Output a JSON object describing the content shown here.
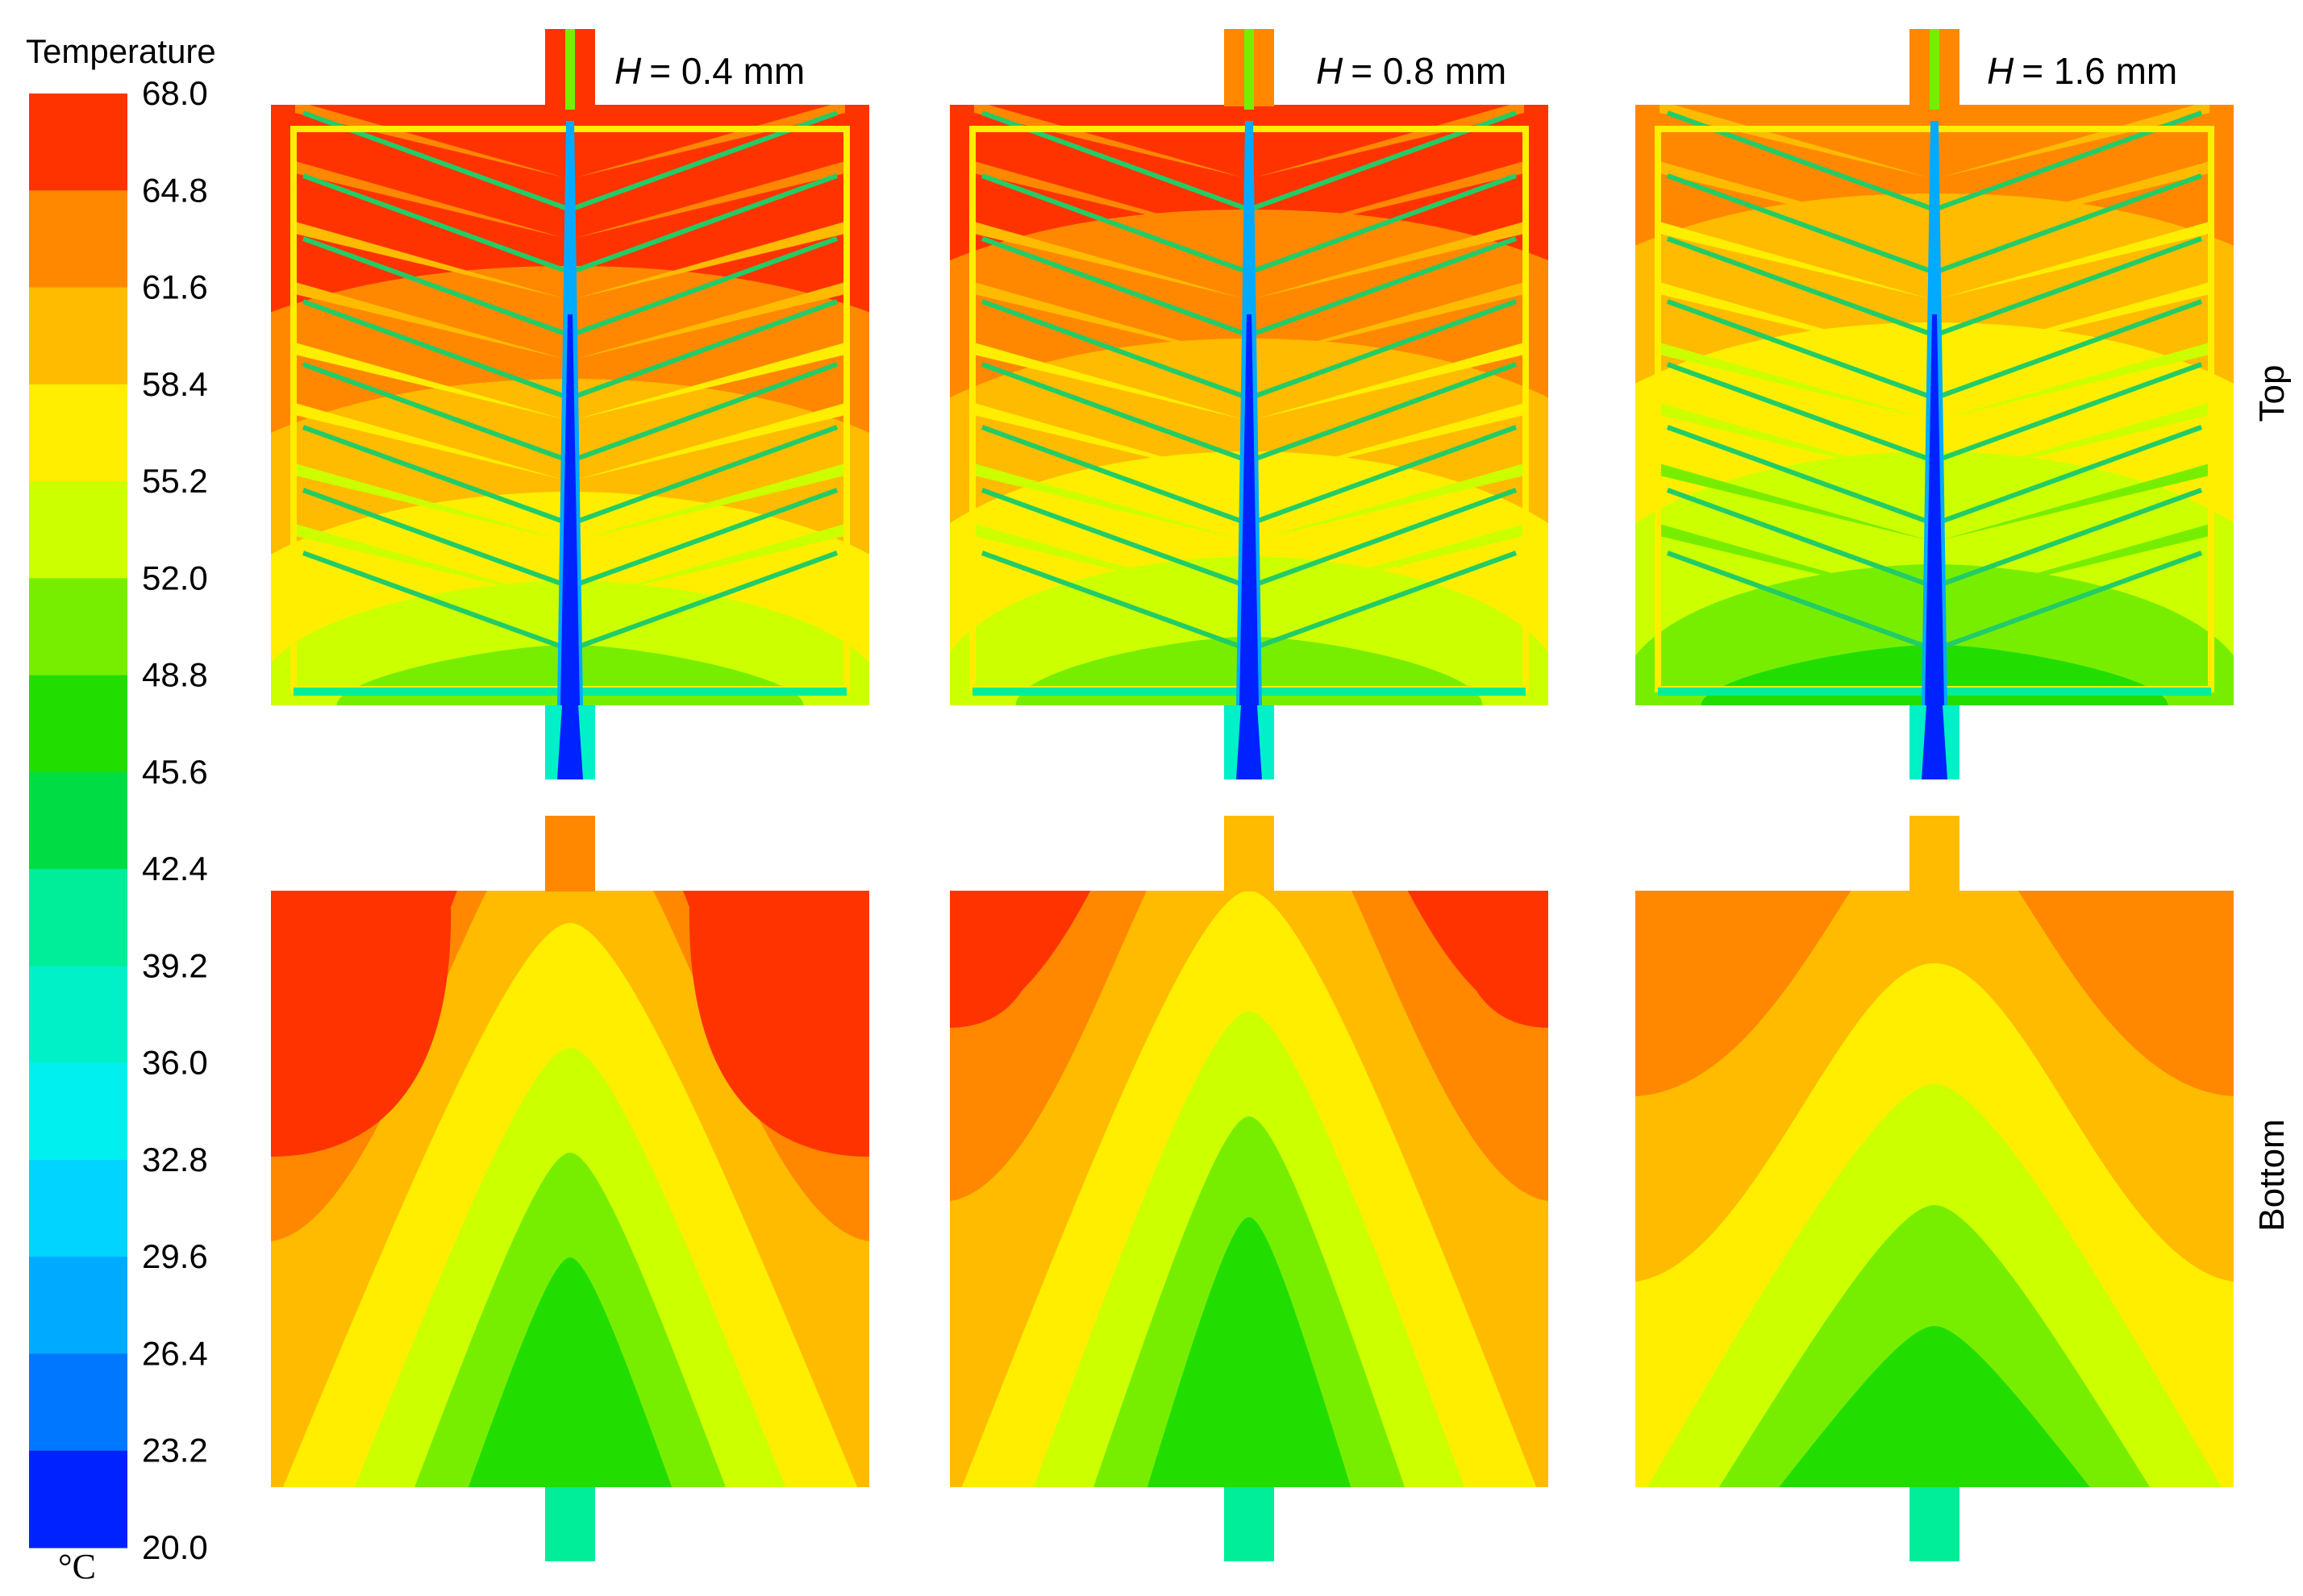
{
  "chart_data": {
    "type": "heatmap",
    "colorbar": {
      "title": "Temperature",
      "unit": "°C",
      "min": 20.0,
      "max": 68.0,
      "ticks": [
        "68.0",
        "64.8",
        "61.6",
        "58.4",
        "55.2",
        "52.0",
        "48.8",
        "45.6",
        "42.4",
        "39.2",
        "36.0",
        "32.8",
        "29.6",
        "26.4",
        "23.2",
        "20.0"
      ],
      "colors": [
        "#ff3300",
        "#ff8800",
        "#ffbb00",
        "#ffee00",
        "#ccff00",
        "#77ee00",
        "#22dd00",
        "#00dd44",
        "#00ee99",
        "#00f0c8",
        "#00f0f0",
        "#00d4ff",
        "#00aaff",
        "#0077ff",
        "#0022ff"
      ]
    },
    "panel_labels": [
      "= 0.4 mm",
      "= 0.8 mm",
      "= 1.6 mm"
    ],
    "panel_label_var": "H",
    "row_labels": [
      "Top",
      "Bottom"
    ],
    "panels": [
      {
        "H_mm": 0.4,
        "top": {
          "range": [
            20.0,
            68.0
          ]
        },
        "bottom": {
          "range": [
            45.6,
            68.0
          ],
          "hot_corner_band": 0,
          "apex_band": 3
        }
      },
      {
        "H_mm": 0.8,
        "top": {
          "range": [
            20.0,
            68.0
          ]
        },
        "bottom": {
          "range": [
            45.6,
            68.0
          ],
          "hot_corner_band": 0,
          "apex_band": 3
        }
      },
      {
        "H_mm": 1.6,
        "top": {
          "range": [
            20.0,
            64.8
          ]
        },
        "bottom": {
          "range": [
            45.6,
            64.8
          ],
          "hot_corner_band": 1,
          "apex_band": 3
        }
      }
    ]
  }
}
